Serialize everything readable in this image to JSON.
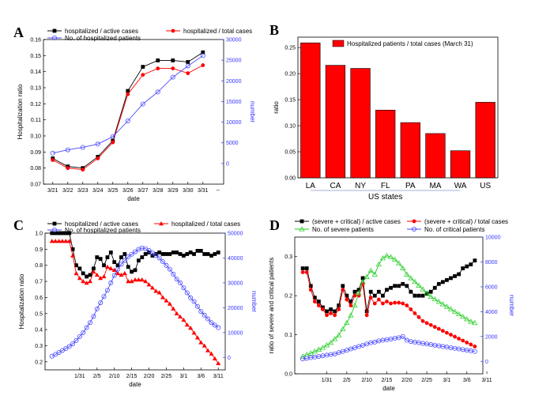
{
  "chart_data": [
    {
      "panel": "A",
      "type": "line",
      "xlabel": "date",
      "ylabel": "Hospitalization ratio",
      "y2label": "number",
      "categories": [
        "3/21",
        "3/22",
        "3/23",
        "3/24",
        "3/25",
        "3/26",
        "3/27",
        "3/28",
        "3/29",
        "3/30",
        "3/31"
      ],
      "ylim": [
        0.07,
        0.16
      ],
      "y2lim": [
        -5000,
        30000
      ],
      "yticks": [
        "0.07",
        "0.08",
        "0.09",
        "0.10",
        "0.11",
        "0.12",
        "0.13",
        "0.14",
        "0.15",
        "0.16"
      ],
      "y2ticks": [
        "0",
        "5000",
        "10000",
        "15000",
        "20000",
        "25000",
        "30000"
      ],
      "extra_xtick": "--",
      "legend": "top-left",
      "series": [
        {
          "name": "hospitalized / active cases",
          "axis": "left",
          "color": "#000000",
          "marker": "square",
          "values": [
            0.086,
            0.081,
            0.08,
            0.087,
            0.097,
            0.128,
            0.143,
            0.147,
            0.147,
            0.146,
            0.152
          ]
        },
        {
          "name": "hospitalized / total cases",
          "axis": "left",
          "color": "#ff0000",
          "marker": "circle",
          "values": [
            0.085,
            0.08,
            0.079,
            0.086,
            0.096,
            0.126,
            0.138,
            0.142,
            0.142,
            0.139,
            0.144
          ]
        },
        {
          "name": "No. of hospitalized patients",
          "axis": "right",
          "color": "#4a4aff",
          "marker": "open-circle",
          "values": [
            2500,
            3300,
            3900,
            4700,
            6500,
            10300,
            14400,
            17300,
            20900,
            23600,
            26100
          ]
        }
      ]
    },
    {
      "panel": "B",
      "type": "bar",
      "xlabel": "US states",
      "ylabel": "ratio",
      "categories": [
        "LA",
        "CA",
        "NY",
        "FL",
        "PA",
        "MA",
        "WA",
        "US"
      ],
      "values": [
        0.259,
        0.216,
        0.21,
        0.13,
        0.106,
        0.085,
        0.052,
        0.145
      ],
      "ylim": [
        0.0,
        0.27
      ],
      "yticks": [
        "0.00",
        "0.05",
        "0.10",
        "0.15",
        "0.20",
        "0.25"
      ],
      "legend": "top-right",
      "series": [
        {
          "name": "Hospitalized patients / total cases (March 31)",
          "color": "#ff0000"
        }
      ]
    },
    {
      "panel": "C",
      "type": "line",
      "xlabel": "date",
      "ylabel": "Hospitalization ratio",
      "y2label": "number",
      "xticks": [
        {
          "label": "1/31",
          "day": 8
        },
        {
          "label": "2/5",
          "day": 13
        },
        {
          "label": "2/10",
          "day": 18
        },
        {
          "label": "2/15",
          "day": 23
        },
        {
          "label": "2/20",
          "day": 28
        },
        {
          "label": "2/25",
          "day": 33
        },
        {
          "label": "3/1",
          "day": 38
        },
        {
          "label": "3/6",
          "day": 43
        },
        {
          "label": "3/11",
          "day": 48
        }
      ],
      "x_start_day": 0,
      "ylim": [
        0.15,
        1.0
      ],
      "y2lim": [
        -5000,
        50000
      ],
      "yticks": [
        "0.2",
        "0.3",
        "0.4",
        "0.5",
        "0.6",
        "0.7",
        "0.8",
        "0.9",
        "1.0"
      ],
      "y2ticks": [
        "0",
        "10000",
        "20000",
        "30000",
        "40000",
        "50000"
      ],
      "legend": "top",
      "series": [
        {
          "name": "hospitalized / active cases",
          "axis": "left",
          "color": "#000000",
          "marker": "square",
          "values": [
            1.0,
            1.0,
            1.0,
            1.0,
            1.0,
            1.0,
            0.9,
            0.8,
            0.78,
            0.75,
            0.73,
            0.74,
            0.78,
            0.85,
            0.84,
            0.8,
            0.85,
            0.88,
            0.82,
            0.8,
            0.85,
            0.87,
            0.79,
            0.76,
            0.77,
            0.83,
            0.85,
            0.87,
            0.88,
            0.86,
            0.87,
            0.88,
            0.87,
            0.87,
            0.87,
            0.88,
            0.88,
            0.87,
            0.86,
            0.87,
            0.88,
            0.87,
            0.89,
            0.89,
            0.87,
            0.87,
            0.86,
            0.87,
            0.88
          ]
        },
        {
          "name": "hospitalized / total cases",
          "axis": "left",
          "color": "#ff0000",
          "marker": "triangle",
          "values": [
            0.95,
            0.95,
            0.95,
            0.95,
            0.95,
            0.95,
            0.86,
            0.75,
            0.72,
            0.7,
            0.69,
            0.7,
            0.76,
            0.74,
            0.72,
            0.73,
            0.79,
            0.78,
            0.77,
            0.75,
            0.74,
            0.75,
            0.7,
            0.7,
            0.71,
            0.71,
            0.71,
            0.7,
            0.68,
            0.66,
            0.64,
            0.63,
            0.6,
            0.58,
            0.56,
            0.53,
            0.5,
            0.48,
            0.46,
            0.43,
            0.41,
            0.38,
            0.35,
            0.32,
            0.3,
            0.27,
            0.25,
            0.22,
            0.19
          ]
        },
        {
          "name": "No. of hospitalized patients",
          "axis": "right",
          "color": "#4a4aff",
          "marker": "open-circle",
          "values": [
            500,
            1200,
            2000,
            2800,
            3600,
            4400,
            5500,
            6800,
            8400,
            10000,
            12000,
            14000,
            16500,
            19500,
            22000,
            24500,
            27000,
            30000,
            33000,
            35500,
            37500,
            39000,
            40500,
            41500,
            42500,
            43500,
            44000,
            43700,
            43000,
            42000,
            41000,
            40000,
            38500,
            37000,
            35500,
            33500,
            31500,
            30000,
            28000,
            26000,
            24000,
            22500,
            20500,
            18500,
            17000,
            15500,
            14000,
            13000,
            12000
          ]
        }
      ]
    },
    {
      "panel": "D",
      "type": "line",
      "xlabel": "date",
      "ylabel": "ratio of severe and critical patients",
      "y2label": "number",
      "xticks": [
        {
          "label": "1/31",
          "day": 8
        },
        {
          "label": "2/5",
          "day": 13
        },
        {
          "label": "2/10",
          "day": 18
        },
        {
          "label": "2/15",
          "day": 23
        },
        {
          "label": "2/20",
          "day": 28
        },
        {
          "label": "2/25",
          "day": 33
        },
        {
          "label": "3/1",
          "day": 38
        },
        {
          "label": "3/6",
          "day": 43
        },
        {
          "label": "3/11",
          "day": 48
        }
      ],
      "x_start_day": 2,
      "ylim": [
        0.0,
        0.35
      ],
      "y2lim": [
        -1000,
        10000
      ],
      "yticks": [
        "0.0",
        "0.1",
        "0.2",
        "0.3"
      ],
      "y2ticks": [
        "0",
        "2000",
        "4000",
        "6000",
        "8000",
        "10000"
      ],
      "legend": "top",
      "series": [
        {
          "name": "(severe + critical) / active cases",
          "axis": "left",
          "color": "#000000",
          "marker": "square",
          "values": [
            0.27,
            0.27,
            0.225,
            0.195,
            0.185,
            0.17,
            0.16,
            0.165,
            0.16,
            0.175,
            0.225,
            0.2,
            0.185,
            0.21,
            0.215,
            0.245,
            0.16,
            0.21,
            0.2,
            0.21,
            0.2,
            0.215,
            0.22,
            0.225,
            0.225,
            0.23,
            0.225,
            0.21,
            0.2,
            0.2,
            0.2,
            0.205,
            0.21,
            0.22,
            0.23,
            0.235,
            0.24,
            0.245,
            0.25,
            0.255,
            0.27,
            0.275,
            0.28,
            0.29
          ]
        },
        {
          "name": "(severe + critical) / total cases",
          "axis": "left",
          "color": "#ff0000",
          "marker": "circle",
          "values": [
            0.26,
            0.26,
            0.215,
            0.185,
            0.175,
            0.165,
            0.15,
            0.155,
            0.15,
            0.165,
            0.215,
            0.19,
            0.175,
            0.2,
            0.2,
            0.23,
            0.15,
            0.195,
            0.18,
            0.19,
            0.18,
            0.185,
            0.18,
            0.182,
            0.182,
            0.18,
            0.175,
            0.165,
            0.155,
            0.145,
            0.135,
            0.13,
            0.125,
            0.12,
            0.115,
            0.11,
            0.105,
            0.1,
            0.095,
            0.09,
            0.085,
            0.08,
            0.075,
            0.07
          ]
        },
        {
          "name": "No. of severe patients",
          "axis": "right",
          "color": "#22cc22",
          "marker": "open-triangle",
          "values": [
            400,
            550,
            650,
            800,
            950,
            1100,
            1300,
            1500,
            1800,
            2100,
            2600,
            3100,
            3700,
            4500,
            5500,
            6400,
            6800,
            7300,
            7000,
            7800,
            8300,
            8500,
            8400,
            8200,
            7900,
            7500,
            7000,
            6700,
            6400,
            6100,
            5800,
            5500,
            5200,
            5000,
            4800,
            4600,
            4400,
            4200,
            4000,
            3800,
            3600,
            3400,
            3200,
            3100
          ]
        },
        {
          "name": "No. of critical patients",
          "axis": "right",
          "color": "#4a4aff",
          "marker": "open-circle",
          "values": [
            200,
            250,
            300,
            350,
            400,
            450,
            500,
            550,
            600,
            700,
            800,
            900,
            1000,
            1100,
            1200,
            1300,
            1400,
            1500,
            1550,
            1650,
            1700,
            1750,
            1800,
            1850,
            1900,
            2000,
            1700,
            1600,
            1550,
            1500,
            1450,
            1400,
            1350,
            1300,
            1250,
            1200,
            1150,
            1100,
            1050,
            1000,
            950,
            900,
            850,
            800
          ]
        }
      ]
    }
  ]
}
